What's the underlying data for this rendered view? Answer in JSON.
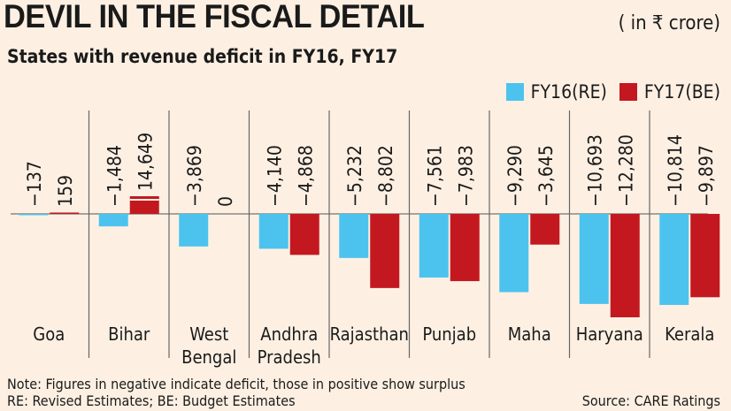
{
  "header": {
    "title": "DEVIL IN THE FISCAL DETAIL",
    "unit": "( in ₹ crore)",
    "subtitle": "States with revenue deficit in FY16, FY17"
  },
  "notes": {
    "note1": "Note: Figures in negative indicate deficit, those in positive show surplus",
    "note2": "RE: Revised Estimates; BE: Budget Estimates",
    "source": "Source: CARE Ratings"
  },
  "colors": {
    "fy16": "#4cc3ee",
    "fy17": "#c3181f",
    "background": "#fdf0e3"
  },
  "chart_data": {
    "type": "bar",
    "categories": [
      "Goa",
      "Bihar",
      "West Bengal",
      "Andhra Pradesh",
      "Rajasthan",
      "Punjab",
      "Maha",
      "Haryana",
      "Kerala"
    ],
    "category_lines": [
      [
        "Goa"
      ],
      [
        "Bihar"
      ],
      [
        "West",
        "Bengal"
      ],
      [
        "Andhra",
        "Pradesh"
      ],
      [
        "Rajasthan"
      ],
      [
        "Punjab"
      ],
      [
        "Maha"
      ],
      [
        "Haryana"
      ],
      [
        "Kerala"
      ]
    ],
    "series": [
      {
        "name": "FY16(RE)",
        "values": [
          -137,
          -1484,
          -3869,
          -4140,
          -5232,
          -7561,
          -9290,
          -10693,
          -10814
        ],
        "labels": [
          "-137",
          "-1,484",
          "-3,869",
          "-4,140",
          "-5,232",
          "-7,561",
          "-9,290",
          "-10,693",
          "-10,814"
        ]
      },
      {
        "name": "FY17(BE)",
        "values": [
          159,
          14649,
          0,
          -4868,
          -8802,
          -7983,
          -3645,
          -12280,
          -9897
        ],
        "labels": [
          "159",
          "14,649",
          "0",
          "-4,868",
          "-8,802",
          "-7,983",
          "-3,645",
          "-12,280",
          "-9,897"
        ]
      }
    ],
    "axis_break": "Bihar FY17(BE) bar truncated",
    "legend": "top-right",
    "grid": false
  }
}
